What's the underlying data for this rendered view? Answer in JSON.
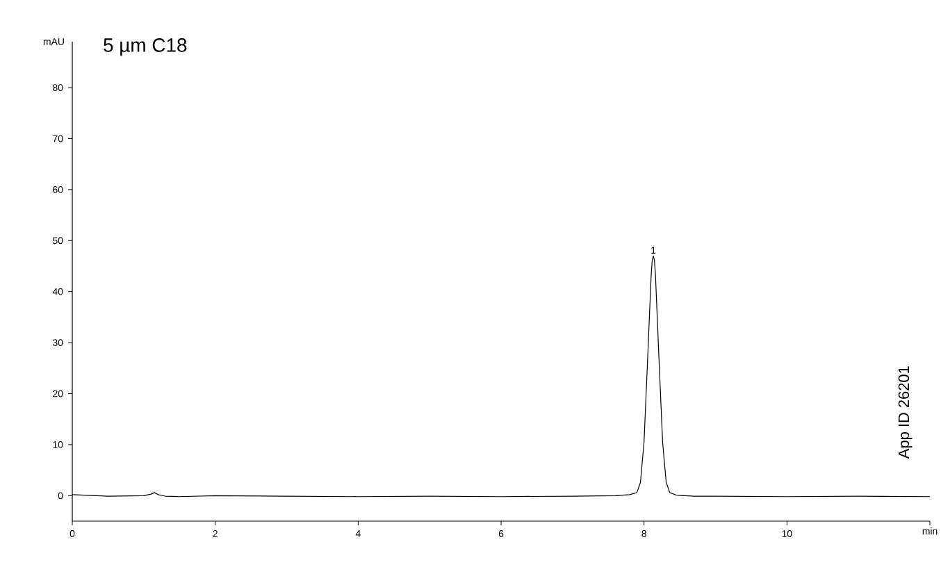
{
  "chart_data": {
    "type": "line",
    "title": "5 µm C18",
    "xlabel": "min",
    "ylabel": "mAU",
    "x": [
      0,
      0.5,
      1.0,
      1.1,
      1.15,
      1.2,
      1.3,
      1.5,
      2,
      3,
      4,
      5,
      6,
      7,
      7.6,
      7.8,
      7.9,
      7.95,
      8.0,
      8.05,
      8.1,
      8.115,
      8.13,
      8.145,
      8.16,
      8.21,
      8.26,
      8.31,
      8.36,
      8.45,
      8.7,
      9,
      10,
      11,
      12
    ],
    "series": [
      {
        "color": "#000000",
        "values": [
          0.2,
          -0.1,
          0.0,
          0.3,
          0.6,
          0.2,
          -0.1,
          -0.2,
          0,
          -0.1,
          -0.2,
          -0.1,
          -0.2,
          -0.1,
          0.0,
          0.2,
          0.6,
          2.6,
          10.5,
          26.6,
          43.3,
          46.2,
          47,
          46.2,
          43.3,
          26.6,
          10.5,
          2.6,
          0.6,
          0.1,
          -0.1,
          -0.1,
          -0.2,
          -0.1,
          -0.2
        ]
      }
    ],
    "xlim": [
      0,
      12
    ],
    "ylim": [
      -5,
      89
    ],
    "xticks": [
      0,
      2,
      4,
      6,
      8,
      10,
      {
        "value": 12,
        "label": null
      }
    ],
    "yticks": [
      0,
      10,
      20,
      30,
      40,
      50,
      60,
      70,
      80
    ],
    "grid": false,
    "marker": "none",
    "line_style": "solid",
    "annotations": [
      {
        "text": "1",
        "x": 8.13,
        "y": 47
      },
      "App ID 26201"
    ]
  }
}
